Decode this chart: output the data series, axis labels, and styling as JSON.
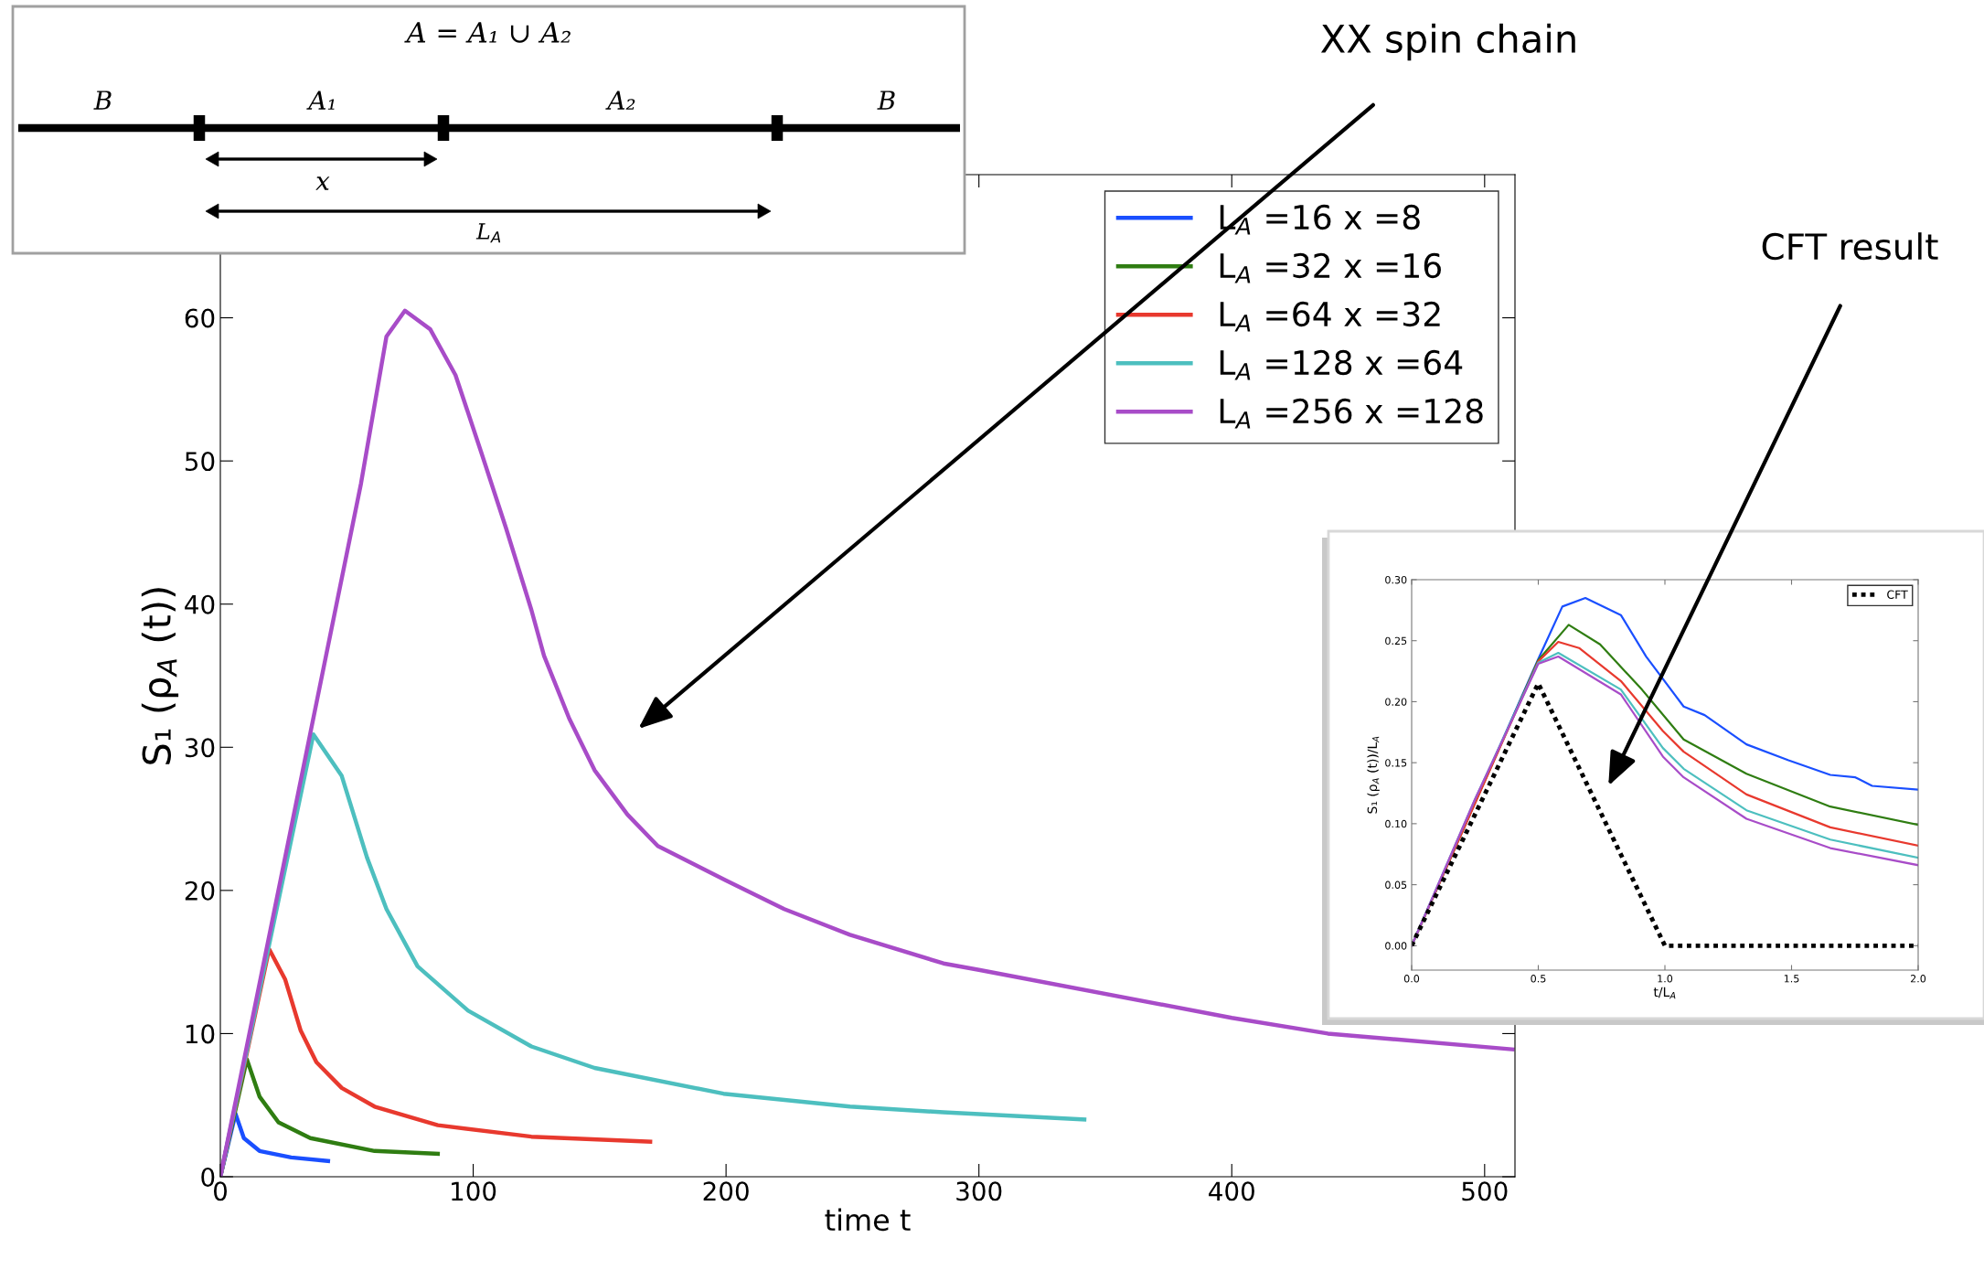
{
  "chart_data": [
    {
      "type": "line",
      "xlabel": "time t",
      "ylabel": "S₁ (ρ$_{A}$ (t))",
      "xlim": [
        0,
        512
      ],
      "ylim": [
        0,
        70
      ],
      "xticks": [
        0,
        100,
        200,
        300,
        400,
        500
      ],
      "yticks": [
        0,
        10,
        20,
        30,
        40,
        50,
        60
      ],
      "grid": false,
      "legend": "top right",
      "marker": "none",
      "line_style": "solid",
      "series": [
        {
          "name": "L$_{A}$ =16 x =8",
          "color": "#1a4fff",
          "x": [
            0,
            6,
            9.3,
            15.5,
            28,
            42.6
          ],
          "values": [
            0,
            4.4,
            2.7,
            1.8,
            1.35,
            1.1
          ]
        },
        {
          "name": "L$_{A}$ =32 x =16",
          "color": "#2f7d12",
          "x": [
            0,
            10.5,
            15.5,
            23,
            35.6,
            61,
            86
          ],
          "values": [
            0,
            8.2,
            5.6,
            3.8,
            2.7,
            1.8,
            1.6
          ]
        },
        {
          "name": "L$_{A}$ =64 x =32",
          "color": "#e8392e",
          "x": [
            0,
            19.3,
            25.6,
            31.8,
            38,
            48,
            61,
            86,
            123,
            170
          ],
          "values": [
            0,
            15.9,
            13.8,
            10.2,
            8.0,
            6.2,
            4.9,
            3.6,
            2.8,
            2.45
          ]
        },
        {
          "name": "L$_{A}$ =128 x =64",
          "color": "#4dbfbf",
          "x": [
            0,
            36.8,
            48,
            58,
            65.7,
            78,
            98,
            123,
            148,
            199,
            249,
            286,
            341.7
          ],
          "values": [
            0,
            30.9,
            28,
            22.3,
            18.7,
            14.7,
            11.6,
            9.1,
            7.6,
            5.8,
            4.9,
            4.5,
            4.0
          ]
        },
        {
          "name": "L$_{A}$ =256 x =128",
          "color": "#a84cc8",
          "x": [
            0,
            35.6,
            55.6,
            65.7,
            73,
            83,
            93,
            103,
            113,
            123,
            128,
            138,
            148,
            161,
            173,
            200,
            223,
            249,
            286,
            300,
            400,
            438,
            511
          ],
          "values": [
            0,
            31,
            48.4,
            58.7,
            60.5,
            59.2,
            56,
            50.7,
            45.3,
            39.6,
            36.4,
            32,
            28.4,
            25.3,
            23.1,
            20.7,
            18.7,
            16.9,
            14.9,
            14.45,
            11.1,
            10.0,
            8.9
          ]
        }
      ],
      "annotations": [
        "A = A₁ ∪ A₂",
        "B",
        "A₁",
        "A₂",
        "B",
        "x",
        "L$_{A}$",
        "XX spin chain"
      ]
    },
    {
      "type": "line",
      "xlabel": "t/L$_{A}$",
      "ylabel": "S₁ (ρ$_{A}$ (t))/L$_{A}$",
      "xlim": [
        0,
        2
      ],
      "ylim": [
        -0.02,
        0.3
      ],
      "xticks": [
        {
          "value": 0,
          "label": "0.0"
        },
        0.5,
        {
          "value": 1,
          "label": "1.0"
        },
        1.5,
        {
          "value": 2,
          "label": "2.0"
        }
      ],
      "yticks": [
        {
          "value": 0,
          "label": "0.00"
        },
        0.05,
        {
          "value": 0.1,
          "label": "0.10"
        },
        0.15,
        {
          "value": 0.2,
          "label": "0.20"
        },
        0.25,
        {
          "value": 0.3,
          "label": "0.30"
        }
      ],
      "grid": false,
      "legend": "top right",
      "marker": "none",
      "series": [
        {
          "color": "#1a4fff",
          "x": [
            0,
            0.5,
            0.595,
            0.686,
            0.826,
            0.926,
            1.074,
            1.157,
            1.322,
            1.488,
            1.653,
            1.752,
            1.818,
            2.0
          ],
          "values": [
            0,
            0.235,
            0.278,
            0.285,
            0.271,
            0.237,
            0.196,
            0.189,
            0.165,
            0.152,
            0.14,
            0.138,
            0.131,
            0.128
          ]
        },
        {
          "color": "#2f7d12",
          "x": [
            0,
            0.5,
            0.62,
            0.744,
            0.909,
            1.074,
            1.322,
            1.653,
            2.0
          ],
          "values": [
            0,
            0.234,
            0.263,
            0.247,
            0.21,
            0.169,
            0.141,
            0.114,
            0.099
          ]
        },
        {
          "color": "#e8392e",
          "x": [
            0,
            0.5,
            0.579,
            0.661,
            0.826,
            0.992,
            1.074,
            1.322,
            1.653,
            2.0
          ],
          "values": [
            0,
            0.233,
            0.249,
            0.244,
            0.217,
            0.176,
            0.159,
            0.124,
            0.097,
            0.082
          ]
        },
        {
          "color": "#4dbfbf",
          "x": [
            0,
            0.25,
            0.5,
            0.579,
            0.826,
            0.992,
            1.074,
            1.322,
            1.653,
            2.0
          ],
          "values": [
            0,
            0.12,
            0.232,
            0.24,
            0.21,
            0.162,
            0.145,
            0.111,
            0.087,
            0.072
          ]
        },
        {
          "color": "#a84cc8",
          "x": [
            0,
            0.25,
            0.5,
            0.579,
            0.826,
            0.992,
            1.074,
            1.322,
            1.653,
            2.0
          ],
          "values": [
            0,
            0.12,
            0.231,
            0.237,
            0.206,
            0.155,
            0.138,
            0.104,
            0.08,
            0.066
          ]
        },
        {
          "name": "CFT",
          "color": "#000000",
          "line_style": "dotted",
          "x": [
            0,
            0.5,
            1.0,
            2.0
          ],
          "values": [
            0,
            0.215,
            0,
            0
          ]
        }
      ],
      "annotations": [
        "CFT result"
      ]
    }
  ]
}
